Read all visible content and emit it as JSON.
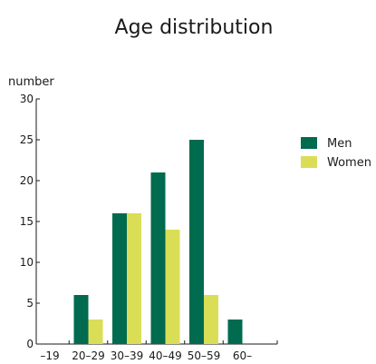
{
  "chart_data": {
    "type": "bar",
    "title": "Age distribution",
    "ylabel": "number",
    "xlabel": "",
    "categories": [
      "–19",
      "20–29",
      "30–39",
      "40–49",
      "50–59",
      "60–"
    ],
    "series": [
      {
        "name": "Men",
        "color": "#006b4f",
        "values": [
          0,
          6,
          16,
          21,
          25,
          3
        ]
      },
      {
        "name": "Women",
        "color": "#d9de56",
        "values": [
          0,
          3,
          16,
          14,
          6,
          0
        ]
      }
    ],
    "ylim": [
      0,
      30
    ],
    "yticks": [
      0,
      5,
      10,
      15,
      20,
      25,
      30
    ],
    "grid": false,
    "legend": "right"
  }
}
